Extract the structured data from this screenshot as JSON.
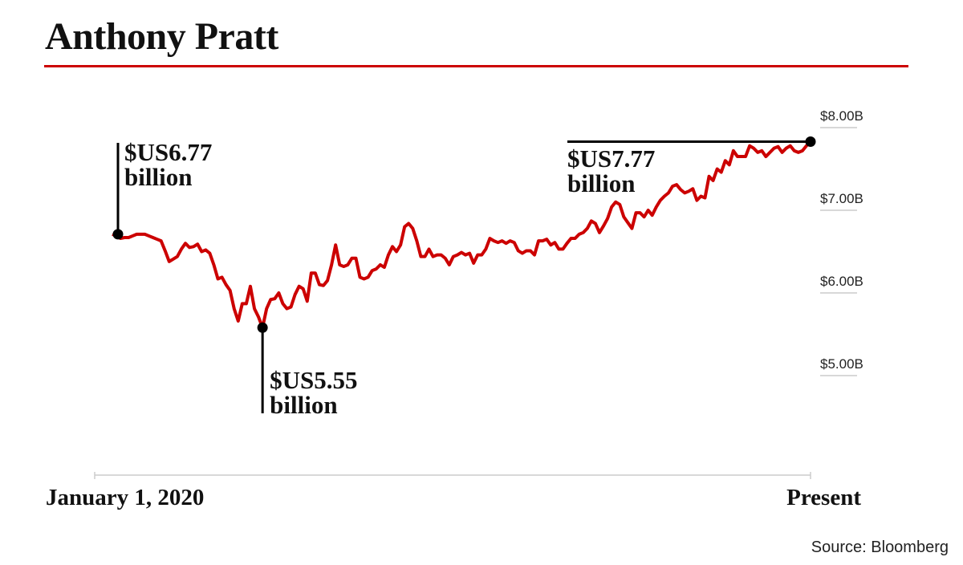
{
  "chart_data": {
    "type": "line",
    "title": "Anthony Pratt",
    "xlabel": "",
    "ylabel": "",
    "x_start_label": "January 1, 2020",
    "x_end_label": "Present",
    "ylim": [
      4.1,
      8.2
    ],
    "y_ticks": [
      {
        "value": 8,
        "label": "$8.00B"
      },
      {
        "value": 7,
        "label": "$7.00B"
      },
      {
        "value": 6,
        "label": "$6.00B"
      },
      {
        "value": 5,
        "label": "$5.00B"
      }
    ],
    "line_color": "#cc0000",
    "series": [
      {
        "name": "Net worth (US$ billion)",
        "values": [
          6.71,
          6.69,
          6.66,
          6.67,
          6.67,
          6.69,
          6.71,
          6.71,
          6.71,
          6.69,
          6.67,
          6.65,
          6.63,
          6.51,
          6.38,
          6.41,
          6.44,
          6.53,
          6.6,
          6.55,
          6.56,
          6.59,
          6.5,
          6.52,
          6.48,
          6.34,
          6.17,
          6.19,
          6.1,
          6.03,
          5.81,
          5.66,
          5.87,
          5.87,
          6.08,
          5.81,
          5.71,
          5.58,
          5.81,
          5.92,
          5.93,
          6.0,
          5.87,
          5.81,
          5.83,
          5.98,
          6.08,
          6.05,
          5.9,
          6.24,
          6.24,
          6.1,
          6.09,
          6.15,
          6.34,
          6.58,
          6.34,
          6.32,
          6.34,
          6.42,
          6.42,
          6.19,
          6.17,
          6.19,
          6.27,
          6.29,
          6.34,
          6.31,
          6.46,
          6.56,
          6.5,
          6.58,
          6.8,
          6.84,
          6.78,
          6.63,
          6.44,
          6.44,
          6.53,
          6.44,
          6.46,
          6.46,
          6.42,
          6.34,
          6.44,
          6.46,
          6.49,
          6.46,
          6.48,
          6.36,
          6.46,
          6.46,
          6.53,
          6.66,
          6.63,
          6.61,
          6.63,
          6.6,
          6.63,
          6.61,
          6.51,
          6.48,
          6.51,
          6.51,
          6.46,
          6.63,
          6.63,
          6.65,
          6.58,
          6.61,
          6.53,
          6.53,
          6.6,
          6.66,
          6.66,
          6.71,
          6.73,
          6.78,
          6.87,
          6.84,
          6.73,
          6.81,
          6.9,
          7.04,
          7.1,
          7.07,
          6.92,
          6.85,
          6.78,
          6.97,
          6.97,
          6.92,
          7.0,
          6.94,
          7.04,
          7.12,
          7.17,
          7.21,
          7.29,
          7.31,
          7.25,
          7.21,
          7.23,
          7.26,
          7.12,
          7.17,
          7.15,
          7.41,
          7.36,
          7.5,
          7.46,
          7.6,
          7.55,
          7.72,
          7.65,
          7.65,
          7.65,
          7.78,
          7.75,
          7.7,
          7.72,
          7.65,
          7.7,
          7.75,
          7.77,
          7.7,
          7.75,
          7.78,
          7.72,
          7.7,
          7.72,
          7.78,
          7.83
        ]
      }
    ],
    "annotations": [
      {
        "point": "start",
        "line1": "$US6.77",
        "line2": "billion"
      },
      {
        "point": "min",
        "line1": "$US5.55",
        "line2": "billion"
      },
      {
        "point": "end",
        "line1": "$US7.77",
        "line2": "billion"
      }
    ],
    "source": "Source: Bloomberg"
  }
}
